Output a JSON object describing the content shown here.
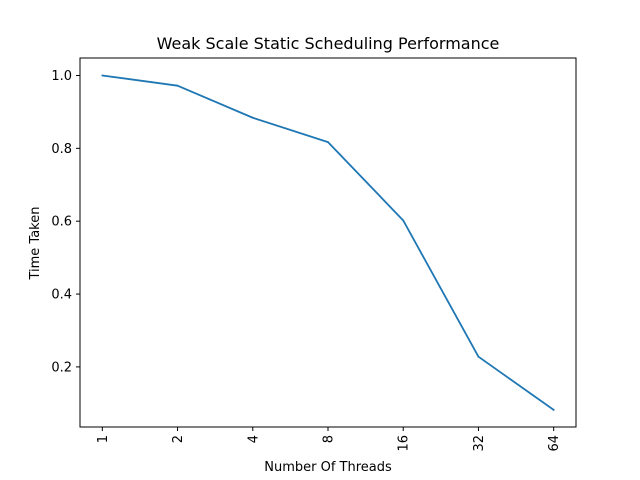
{
  "chart_data": {
    "type": "line",
    "title": "Weak Scale Static Scheduling Performance",
    "xlabel": "Number Of Threads",
    "ylabel": "Time Taken",
    "categories": [
      "1",
      "2",
      "4",
      "8",
      "16",
      "32",
      "64"
    ],
    "series": [
      {
        "values": [
          1.0,
          0.972,
          0.884,
          0.817,
          0.602,
          0.228,
          0.082
        ],
        "color": "#1f77b4"
      }
    ],
    "yticks": [
      "0.2",
      "0.4",
      "0.6",
      "0.8",
      "1.0"
    ],
    "ylim": [
      0.035,
      1.048
    ],
    "grid": false,
    "legend": "none"
  }
}
